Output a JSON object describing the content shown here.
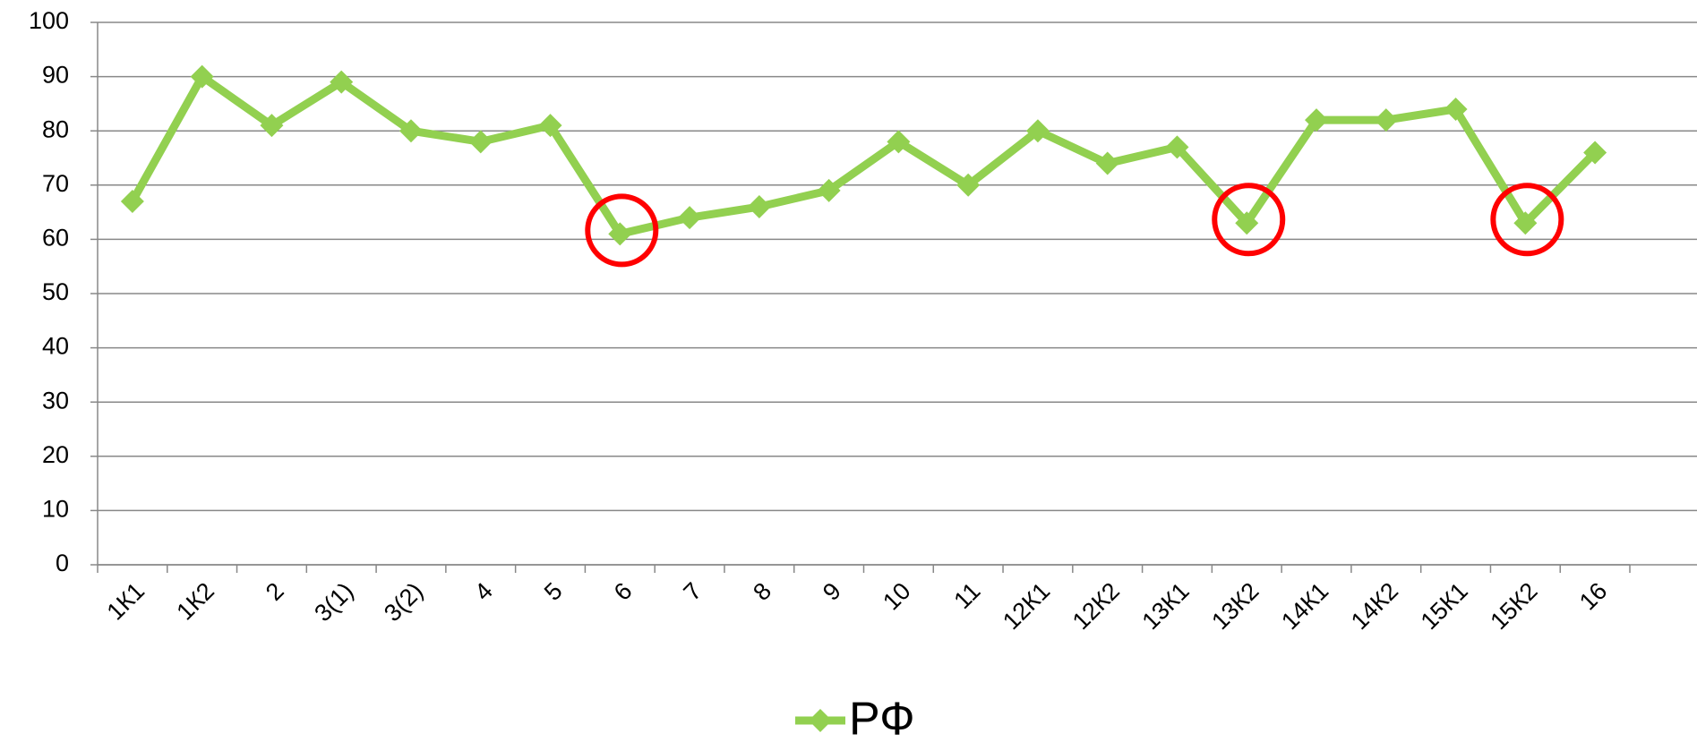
{
  "chart_data": {
    "type": "line",
    "categories": [
      "1К1",
      "1К2",
      "2",
      "3(1)",
      "3(2)",
      "4",
      "5",
      "6",
      "7",
      "8",
      "9",
      "10",
      "11",
      "12К1",
      "12К2",
      "13К1",
      "13К2",
      "14К1",
      "14К2",
      "15К1",
      "15К2",
      "16"
    ],
    "series": [
      {
        "name": "РФ",
        "color": "#92d050",
        "values": [
          67,
          90,
          81,
          89,
          80,
          78,
          81,
          61,
          64,
          66,
          69,
          78,
          70,
          80,
          74,
          77,
          63,
          82,
          82,
          84,
          63,
          76
        ]
      }
    ],
    "ylim": [
      0,
      100
    ],
    "yticks": [
      0,
      10,
      20,
      30,
      40,
      50,
      60,
      70,
      80,
      90,
      100
    ],
    "grid": true,
    "legend": "bottom",
    "highlight_categories": [
      "6",
      "13К2",
      "15К2"
    ],
    "highlight_color": "#ff0000"
  }
}
